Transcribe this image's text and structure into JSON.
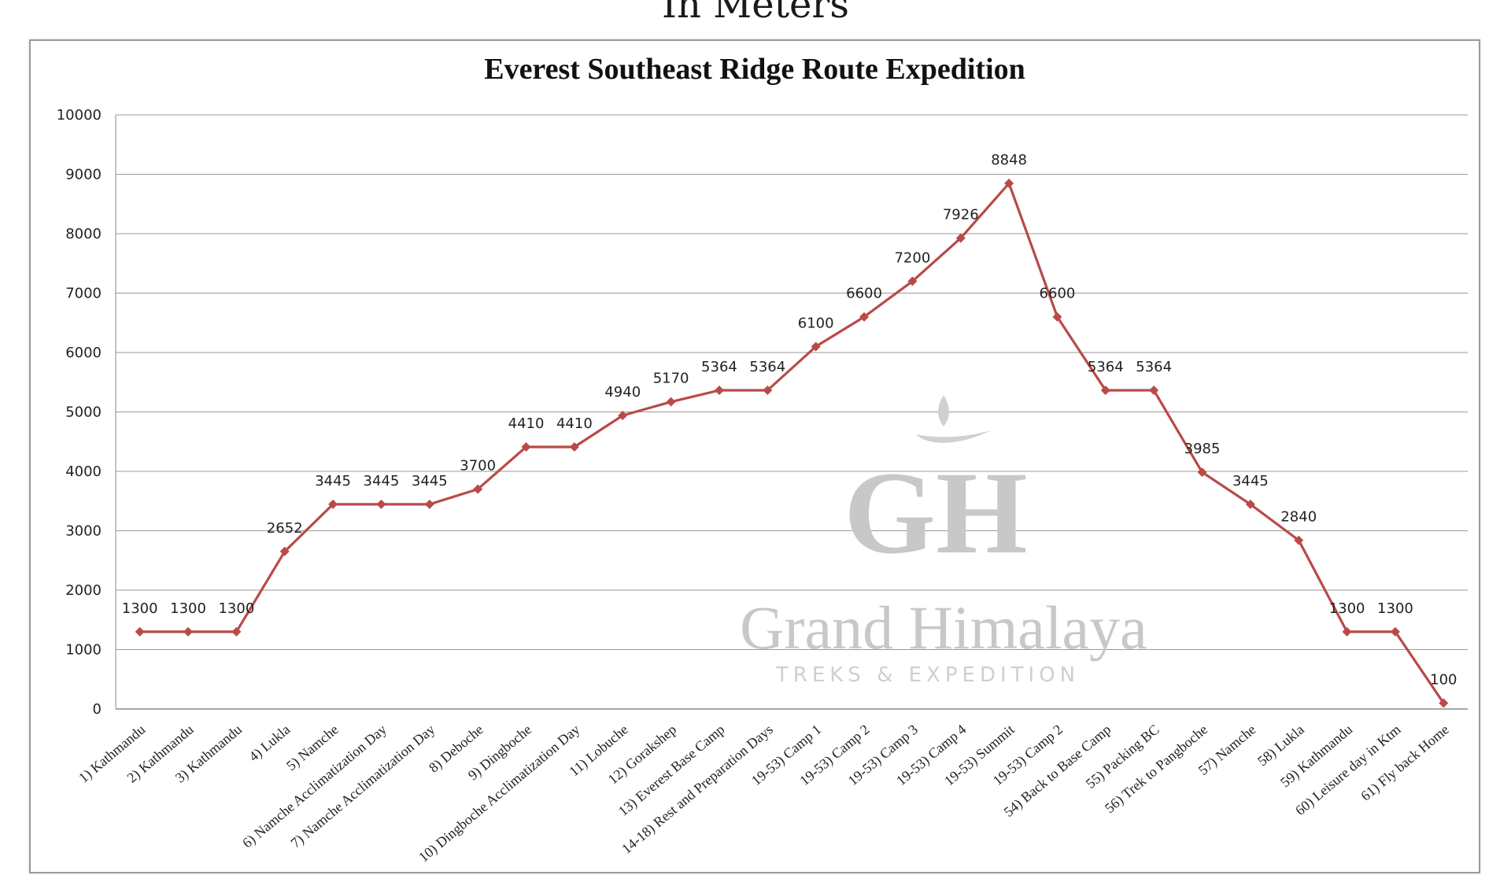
{
  "page_header": "In Meters",
  "watermark": {
    "brand": "Grand Himalaya",
    "tagline": "TREKS & EXPEDITION",
    "monogram": "GH"
  },
  "chart_data": {
    "type": "line",
    "title": "Everest Southeast Ridge Route Expedition",
    "xlabel": "",
    "ylabel": "",
    "ylim": [
      0,
      10000
    ],
    "yticks": [
      0,
      1000,
      2000,
      3000,
      4000,
      5000,
      6000,
      7000,
      8000,
      9000,
      10000
    ],
    "grid": true,
    "legend": "none",
    "line_color": "#b94a48",
    "categories": [
      "1) Kathmandu",
      "2) Kathmandu",
      "3) Kathmandu",
      "4) Lukla",
      "5) Namche",
      "6) Namche Acclimatization Day",
      "7) Namche Acclimatization Day",
      "8) Deboche",
      "9) Dingboche",
      "10) Dingboche Acclimatization Day",
      "11) Lobuche",
      "12) Gorakshep",
      "13) Everest Base Camp",
      "14-18) Rest and Preparation Days",
      "19-53) Camp 1",
      "19-53) Camp 2",
      "19-53) Camp 3",
      "19-53) Camp 4",
      "19-53) Summit",
      "19-53) Camp 2",
      "54) Back to Base Camp",
      "55) Packing BC",
      "56) Trek to Pangboche",
      "57) Namche",
      "58) Lukla",
      "59) Kathmandu",
      "60) Leisure day in Ktm",
      "61) Fly back Home"
    ],
    "values": [
      1300,
      1300,
      1300,
      2652,
      3445,
      3445,
      3445,
      3700,
      4410,
      4410,
      4940,
      5170,
      5364,
      5364,
      6100,
      6600,
      7200,
      7926,
      8848,
      6600,
      5364,
      5364,
      3985,
      3445,
      2840,
      1300,
      1300,
      100
    ]
  }
}
